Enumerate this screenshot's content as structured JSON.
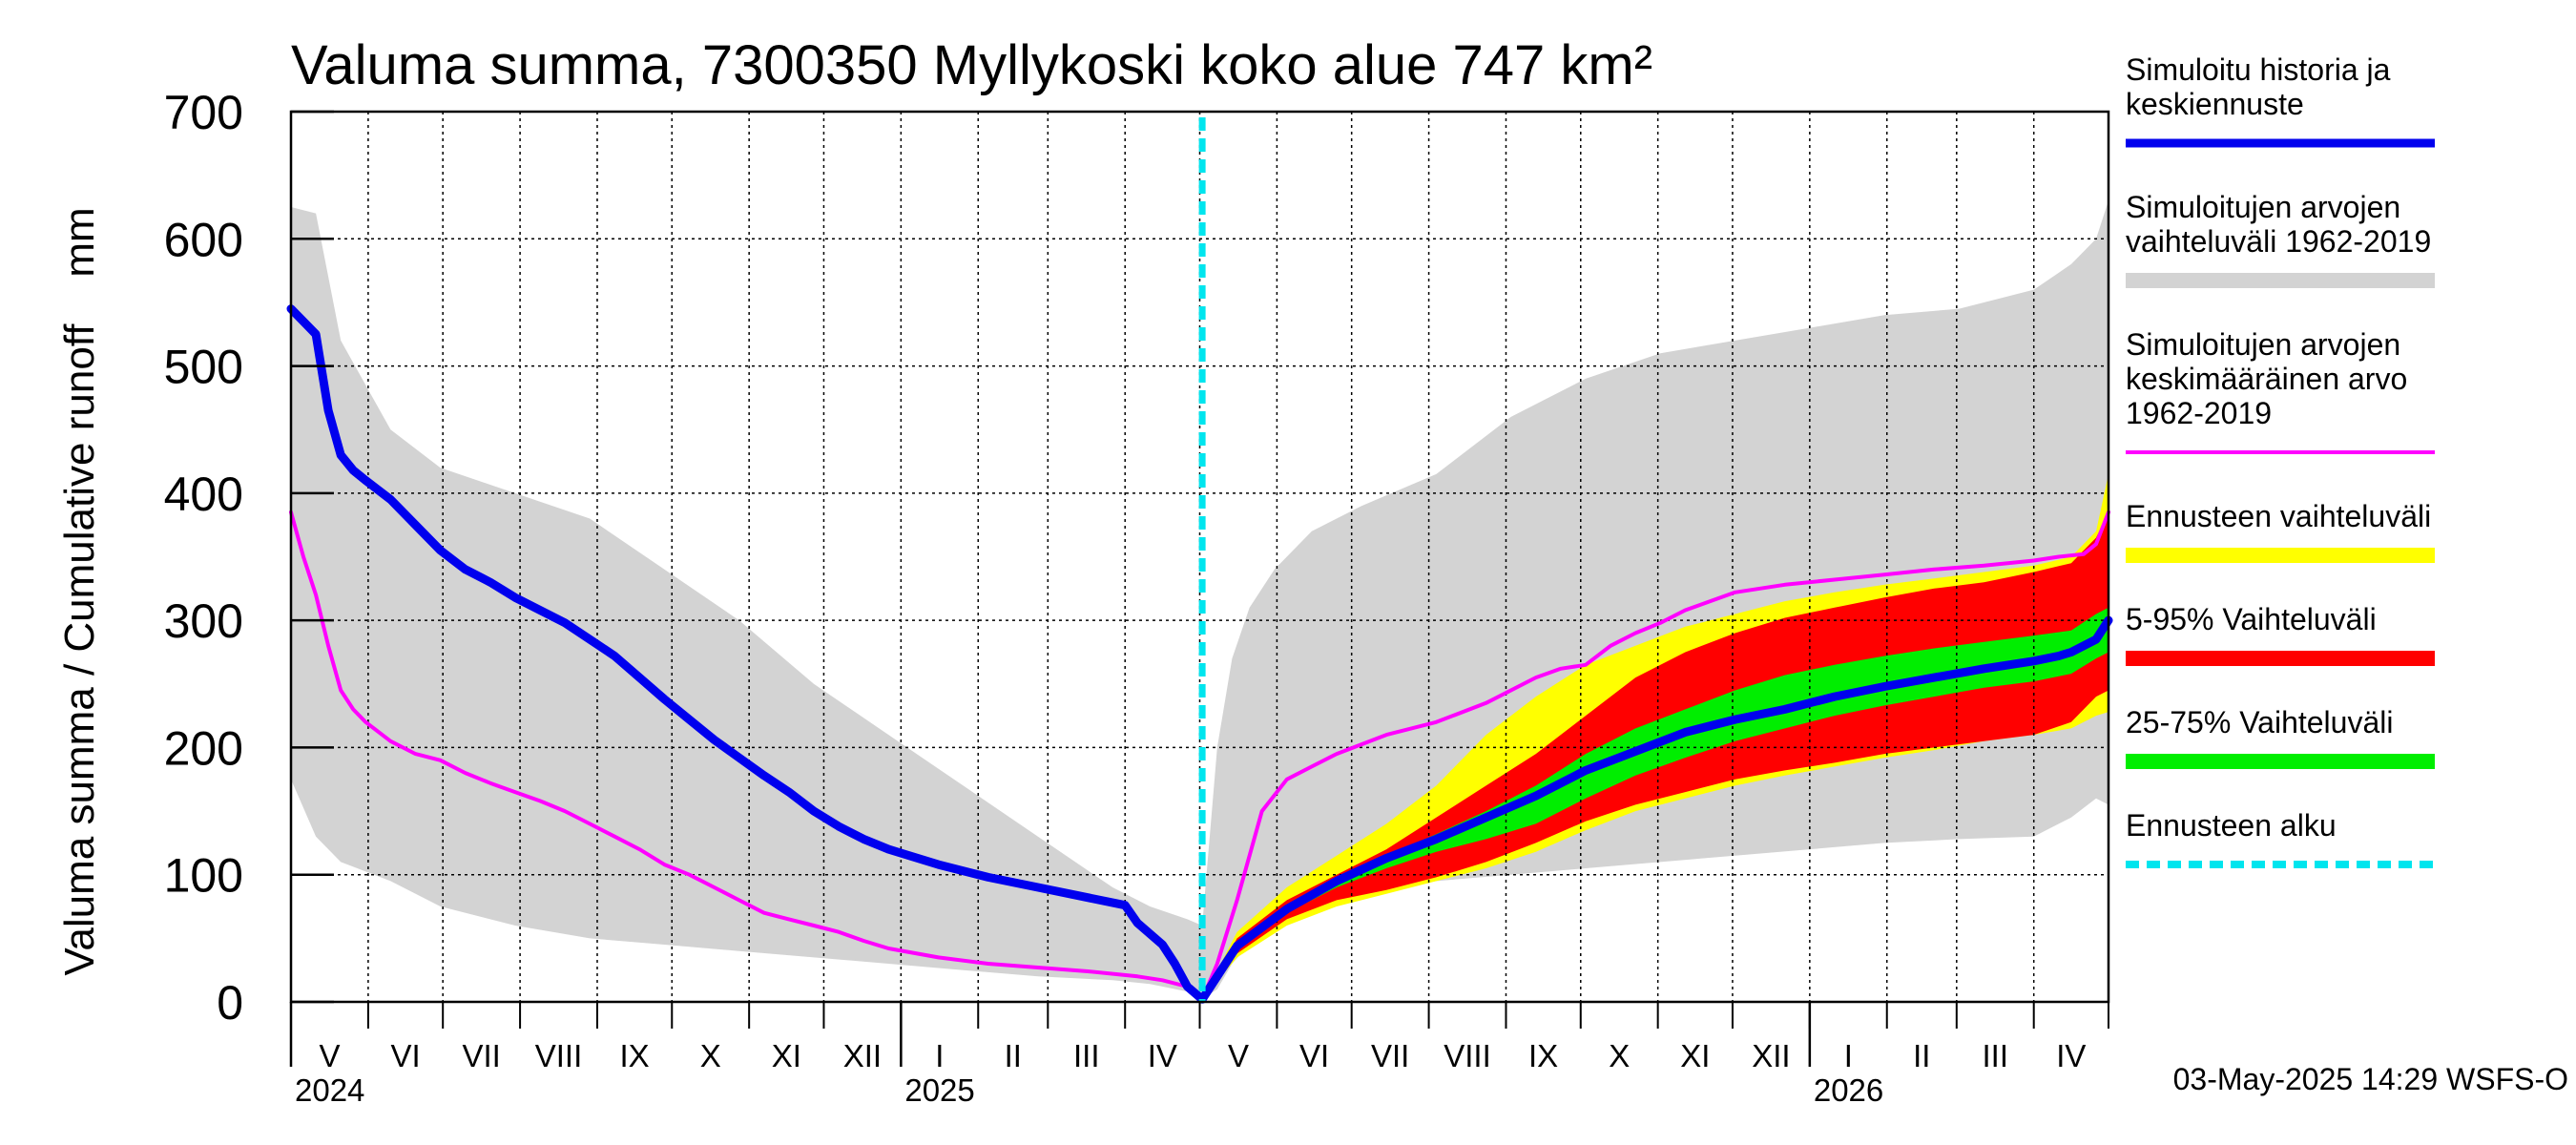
{
  "chart_data": {
    "type": "area",
    "title": "Valuma summa, 7300350 Myllykoski koko alue 747 km²",
    "ylabel": "Valuma summa / Cumulative runoff    mm",
    "ylim": [
      0,
      700
    ],
    "yticks": [
      0,
      100,
      200,
      300,
      400,
      500,
      600,
      700
    ],
    "x_unit": "days since 2024-05-01",
    "xlim": [
      0,
      730
    ],
    "forecast_start": 366,
    "months": [
      {
        "label": "V",
        "start": 0,
        "end": 31
      },
      {
        "label": "VI",
        "start": 31,
        "end": 61
      },
      {
        "label": "VII",
        "start": 61,
        "end": 92
      },
      {
        "label": "VIII",
        "start": 92,
        "end": 123
      },
      {
        "label": "IX",
        "start": 123,
        "end": 153
      },
      {
        "label": "X",
        "start": 153,
        "end": 184
      },
      {
        "label": "XI",
        "start": 184,
        "end": 214
      },
      {
        "label": "XII",
        "start": 214,
        "end": 245
      },
      {
        "label": "I",
        "start": 245,
        "end": 276
      },
      {
        "label": "II",
        "start": 276,
        "end": 304
      },
      {
        "label": "III",
        "start": 304,
        "end": 335
      },
      {
        "label": "IV",
        "start": 335,
        "end": 365
      },
      {
        "label": "V",
        "start": 365,
        "end": 396
      },
      {
        "label": "VI",
        "start": 396,
        "end": 426
      },
      {
        "label": "VII",
        "start": 426,
        "end": 457
      },
      {
        "label": "VIII",
        "start": 457,
        "end": 488
      },
      {
        "label": "IX",
        "start": 488,
        "end": 518
      },
      {
        "label": "X",
        "start": 518,
        "end": 549
      },
      {
        "label": "XI",
        "start": 549,
        "end": 579
      },
      {
        "label": "XII",
        "start": 579,
        "end": 610
      },
      {
        "label": "I",
        "start": 610,
        "end": 641
      },
      {
        "label": "II",
        "start": 641,
        "end": 669
      },
      {
        "label": "III",
        "start": 669,
        "end": 700
      },
      {
        "label": "IV",
        "start": 700,
        "end": 730
      }
    ],
    "years": [
      {
        "label": "2024",
        "start": 0
      },
      {
        "label": "2025",
        "start": 245
      },
      {
        "label": "2026",
        "start": 610
      }
    ],
    "grid": true,
    "series": [
      {
        "name": "Simuloitujen arvojen vaihteluväli 1962-2019",
        "kind": "band",
        "color": "#d3d3d3",
        "x": [
          0,
          10,
          20,
          40,
          60,
          90,
          120,
          150,
          180,
          210,
          240,
          270,
          300,
          330,
          345,
          360,
          366,
          372,
          378,
          385,
          395,
          410,
          430,
          460,
          490,
          520,
          550,
          580,
          610,
          640,
          670,
          700,
          715,
          725,
          730
        ],
        "lower": [
          175,
          130,
          110,
          95,
          75,
          60,
          50,
          45,
          40,
          35,
          30,
          25,
          20,
          17,
          14,
          8,
          2,
          10,
          30,
          45,
          60,
          75,
          85,
          95,
          100,
          105,
          110,
          115,
          120,
          125,
          128,
          130,
          145,
          160,
          155
        ],
        "upper": [
          625,
          620,
          520,
          450,
          420,
          400,
          380,
          340,
          300,
          250,
          210,
          170,
          130,
          90,
          75,
          65,
          60,
          200,
          270,
          310,
          340,
          370,
          390,
          415,
          460,
          490,
          510,
          520,
          530,
          540,
          545,
          560,
          580,
          600,
          630
        ]
      },
      {
        "name": "Ennusteen vaihteluväli",
        "kind": "band",
        "color": "#ffff00",
        "x": [
          366,
          380,
          400,
          420,
          440,
          460,
          480,
          500,
          520,
          540,
          560,
          580,
          600,
          620,
          640,
          660,
          680,
          700,
          715,
          725,
          730
        ],
        "lower": [
          2,
          35,
          60,
          75,
          85,
          95,
          105,
          118,
          135,
          150,
          160,
          170,
          178,
          185,
          192,
          198,
          205,
          210,
          215,
          225,
          228
        ],
        "upper": [
          2,
          55,
          90,
          115,
          140,
          170,
          210,
          240,
          265,
          280,
          295,
          305,
          315,
          322,
          328,
          333,
          338,
          343,
          350,
          370,
          415
        ]
      },
      {
        "name": "5-95% Vaihteluväli",
        "kind": "band",
        "color": "#ff0000",
        "x": [
          366,
          380,
          400,
          420,
          440,
          460,
          480,
          500,
          520,
          540,
          560,
          580,
          600,
          620,
          640,
          660,
          680,
          700,
          715,
          725,
          730
        ],
        "lower": [
          2,
          38,
          65,
          80,
          88,
          98,
          110,
          125,
          142,
          155,
          165,
          175,
          182,
          188,
          195,
          200,
          205,
          210,
          220,
          240,
          245
        ],
        "upper": [
          2,
          50,
          80,
          100,
          120,
          145,
          170,
          195,
          225,
          255,
          275,
          290,
          302,
          310,
          318,
          325,
          330,
          338,
          345,
          365,
          385
        ]
      },
      {
        "name": "25-75% Vaihteluväli",
        "kind": "band",
        "color": "#00ee00",
        "x": [
          366,
          380,
          400,
          420,
          440,
          460,
          480,
          500,
          520,
          540,
          560,
          580,
          600,
          620,
          640,
          660,
          680,
          700,
          715,
          725,
          730
        ],
        "lower": [
          2,
          42,
          70,
          90,
          105,
          118,
          128,
          140,
          160,
          178,
          192,
          205,
          215,
          225,
          233,
          240,
          247,
          252,
          258,
          270,
          275
        ],
        "upper": [
          2,
          47,
          76,
          98,
          115,
          132,
          150,
          170,
          195,
          215,
          230,
          245,
          257,
          265,
          272,
          278,
          283,
          288,
          292,
          305,
          310
        ]
      },
      {
        "name": "Simuloitujen arvojen keskimääräinen arvo 1962-2019",
        "kind": "line",
        "color": "#ff00ff",
        "x": [
          0,
          5,
          10,
          15,
          20,
          25,
          30,
          40,
          50,
          60,
          70,
          80,
          90,
          100,
          110,
          120,
          130,
          140,
          150,
          160,
          170,
          180,
          190,
          200,
          210,
          220,
          230,
          240,
          260,
          280,
          300,
          320,
          340,
          350,
          360,
          366,
          372,
          380,
          390,
          400,
          410,
          420,
          440,
          460,
          480,
          500,
          510,
          520,
          530,
          540,
          550,
          560,
          570,
          580,
          600,
          620,
          640,
          660,
          680,
          700,
          710,
          720,
          725,
          730
        ],
        "values": [
          385,
          350,
          320,
          280,
          245,
          230,
          220,
          205,
          195,
          190,
          180,
          172,
          165,
          158,
          150,
          140,
          130,
          120,
          108,
          100,
          90,
          80,
          70,
          65,
          60,
          55,
          48,
          42,
          35,
          30,
          27,
          24,
          20,
          17,
          12,
          2,
          30,
          80,
          150,
          175,
          185,
          195,
          210,
          220,
          235,
          255,
          262,
          265,
          280,
          290,
          298,
          308,
          315,
          322,
          328,
          332,
          336,
          340,
          343,
          347,
          350,
          352,
          360,
          385
        ]
      },
      {
        "name": "Simuloitu historia ja keskiennuste",
        "kind": "line",
        "color": "#0000ee",
        "x": [
          0,
          5,
          10,
          15,
          20,
          25,
          30,
          40,
          50,
          60,
          70,
          80,
          90,
          100,
          110,
          120,
          130,
          140,
          150,
          160,
          170,
          180,
          190,
          200,
          210,
          220,
          230,
          240,
          260,
          280,
          300,
          320,
          335,
          340,
          350,
          355,
          360,
          366,
          380,
          400,
          420,
          440,
          460,
          480,
          500,
          520,
          540,
          560,
          580,
          600,
          620,
          640,
          660,
          680,
          700,
          710,
          715,
          725,
          730
        ],
        "values": [
          545,
          535,
          525,
          465,
          430,
          418,
          410,
          395,
          375,
          355,
          340,
          330,
          318,
          308,
          298,
          285,
          272,
          255,
          238,
          222,
          206,
          192,
          178,
          165,
          150,
          138,
          128,
          120,
          108,
          98,
          90,
          82,
          76,
          62,
          45,
          30,
          12,
          2,
          44,
          73,
          95,
          113,
          128,
          145,
          162,
          182,
          197,
          212,
          222,
          230,
          240,
          248,
          255,
          262,
          268,
          272,
          275,
          285,
          300
        ]
      }
    ],
    "forecast_marker": {
      "label": "Ennusteen alku",
      "color": "#00e5ee"
    },
    "legend": [
      {
        "label": "Simuloitu historia ja keskiennuste",
        "lines": [
          "Simuloitu historia ja",
          "keskiennuste"
        ],
        "color": "#0000ee",
        "style": "thick"
      },
      {
        "label": "Simuloitujen arvojen vaihteluväli 1962-2019",
        "lines": [
          "Simuloitujen arvojen",
          "vaihteluväli 1962-2019"
        ],
        "color": "#d3d3d3",
        "style": "band"
      },
      {
        "label": "Simuloitujen arvojen keskimääräinen arvo 1962-2019",
        "lines": [
          "Simuloitujen arvojen",
          "keskimääräinen arvo",
          "   1962-2019"
        ],
        "color": "#ff00ff",
        "style": "thin"
      },
      {
        "label": "Ennusteen vaihteluväli",
        "lines": [
          "Ennusteen vaihteluväli"
        ],
        "color": "#ffff00",
        "style": "band"
      },
      {
        "label": "5-95% Vaihteluväli",
        "lines": [
          "5-95% Vaihteluväli"
        ],
        "color": "#ff0000",
        "style": "band"
      },
      {
        "label": "25-75% Vaihteluväli",
        "lines": [
          "25-75% Vaihteluväli"
        ],
        "color": "#00ee00",
        "style": "band"
      },
      {
        "label": "Ennusteen alku",
        "lines": [
          "Ennusteen alku"
        ],
        "color": "#00e5ee",
        "style": "dashed"
      }
    ],
    "timestamp": "03-May-2025 14:29 WSFS-O"
  }
}
